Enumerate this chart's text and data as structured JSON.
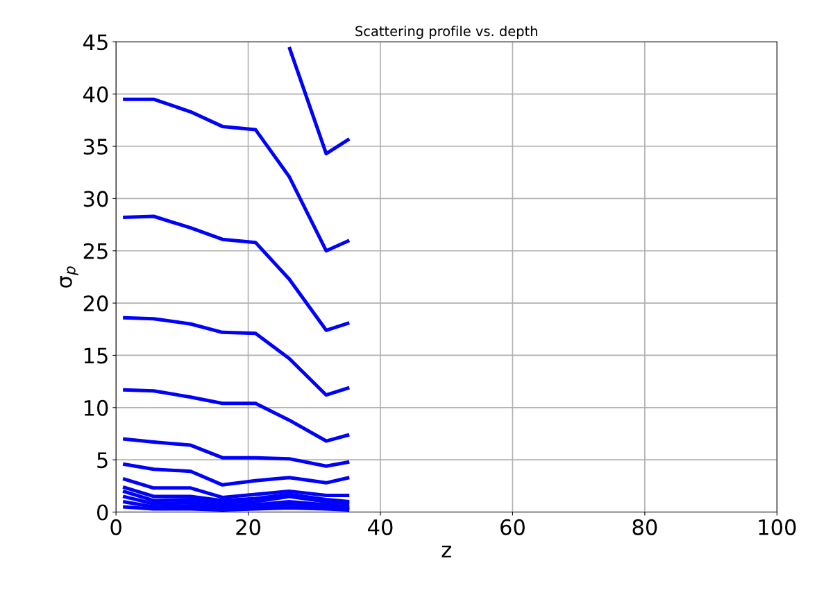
{
  "chart_data": {
    "type": "line",
    "title": "Scattering profile vs. depth",
    "xlabel": "z",
    "ylabel": "σ$_{p}$",
    "x": [
      1.05,
      5.7,
      11.3,
      16.1,
      21.1,
      26.2,
      31.8,
      35.3
    ],
    "series": [
      {
        "color": "#0000ff",
        "values": [
          null,
          null,
          null,
          null,
          null,
          44.5,
          34.3,
          35.7
        ]
      },
      {
        "color": "#0000ff",
        "values": [
          39.5,
          39.5,
          38.3,
          36.9,
          36.6,
          32.1,
          25.0,
          26.0
        ]
      },
      {
        "color": "#0000ff",
        "values": [
          28.2,
          28.3,
          27.2,
          26.1,
          25.8,
          22.3,
          17.4,
          18.1
        ]
      },
      {
        "color": "#0000ff",
        "values": [
          18.6,
          18.5,
          18.0,
          17.2,
          17.1,
          14.7,
          11.2,
          11.9
        ]
      },
      {
        "color": "#0000ff",
        "values": [
          11.7,
          11.6,
          11.0,
          10.4,
          10.4,
          8.8,
          6.8,
          7.4
        ]
      },
      {
        "color": "#0000ff",
        "values": [
          7.0,
          6.7,
          6.4,
          5.2,
          5.2,
          5.1,
          4.4,
          4.8
        ]
      },
      {
        "color": "#0000ff",
        "values": [
          4.6,
          4.1,
          3.9,
          2.6,
          3.0,
          3.3,
          2.8,
          3.3
        ]
      },
      {
        "color": "#0000ff",
        "values": [
          3.2,
          2.3,
          2.3,
          1.4,
          1.7,
          2.0,
          1.6,
          1.6
        ]
      },
      {
        "color": "#0000ff",
        "values": [
          2.4,
          1.5,
          1.5,
          1.1,
          1.3,
          1.7,
          1.2,
          1.0
        ]
      },
      {
        "color": "#0000ff",
        "values": [
          2.0,
          1.1,
          1.2,
          0.9,
          1.0,
          1.5,
          1.0,
          0.8
        ]
      },
      {
        "color": "#0000ff",
        "values": [
          1.5,
          0.8,
          0.9,
          0.6,
          0.7,
          1.0,
          0.7,
          0.5
        ]
      },
      {
        "color": "#0000ff",
        "values": [
          1.0,
          0.5,
          0.6,
          0.4,
          0.5,
          0.7,
          0.5,
          0.3
        ]
      },
      {
        "color": "#0000ff",
        "values": [
          0.5,
          0.3,
          0.3,
          0.2,
          0.3,
          0.4,
          0.3,
          0.2
        ]
      }
    ],
    "xlim": [
      0,
      100
    ],
    "xticks": [
      0,
      20,
      40,
      60,
      80,
      100
    ],
    "ylim": [
      0,
      45
    ],
    "yticks": [
      0,
      5,
      10,
      15,
      20,
      25,
      30,
      35,
      40,
      45
    ],
    "grid": true,
    "marker": "none",
    "line_style": "solid"
  }
}
